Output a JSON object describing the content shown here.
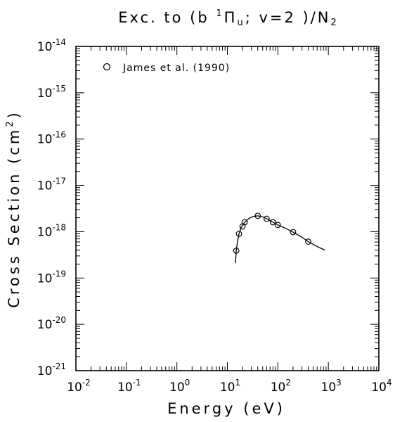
{
  "chart_data": {
    "type": "scatter",
    "title": {
      "prefix": "Exc. to (b ",
      "sup": "1",
      "symbol": "Π",
      "sub": "u",
      "middle": "; v=2 )/N",
      "sub2": "2"
    },
    "xlabel": "Energy (eV)",
    "ylabel": {
      "main": "Cross Section (cm",
      "sup": "2",
      "end": ")"
    },
    "x_scale": "log",
    "y_scale": "log",
    "xlim": [
      0.01,
      10000
    ],
    "ylim": [
      1e-21,
      1e-14
    ],
    "x_ticks": [
      {
        "base": "10",
        "exp": "-2",
        "value": 0.01
      },
      {
        "base": "10",
        "exp": "-1",
        "value": 0.1
      },
      {
        "base": "10",
        "exp": "0",
        "value": 1
      },
      {
        "base": "10",
        "exp": "1",
        "value": 10
      },
      {
        "base": "10",
        "exp": "2",
        "value": 100
      },
      {
        "base": "10",
        "exp": "3",
        "value": 1000
      },
      {
        "base": "10",
        "exp": "4",
        "value": 10000
      }
    ],
    "y_ticks": [
      {
        "base": "10",
        "exp": "-21",
        "value": 1e-21
      },
      {
        "base": "10",
        "exp": "-20",
        "value": 1e-20
      },
      {
        "base": "10",
        "exp": "-19",
        "value": 1e-19
      },
      {
        "base": "10",
        "exp": "-18",
        "value": 1e-18
      },
      {
        "base": "10",
        "exp": "-17",
        "value": 1e-17
      },
      {
        "base": "10",
        "exp": "-16",
        "value": 1e-16
      },
      {
        "base": "10",
        "exp": "-15",
        "value": 1e-15
      },
      {
        "base": "10",
        "exp": "-14",
        "value": 1e-14
      }
    ],
    "grid": false,
    "legend": {
      "position": "top-left",
      "entries": [
        "James et al. (1990)"
      ]
    },
    "series": [
      {
        "name": "James et al. (1990)",
        "marker": "open-circle",
        "points": [
          {
            "x": 15,
            "y": 3.9e-19
          },
          {
            "x": 17,
            "y": 9e-19
          },
          {
            "x": 20,
            "y": 1.3e-18
          },
          {
            "x": 22,
            "y": 1.6e-18
          },
          {
            "x": 40,
            "y": 2.2e-18
          },
          {
            "x": 60,
            "y": 1.9e-18
          },
          {
            "x": 80,
            "y": 1.6e-18
          },
          {
            "x": 100,
            "y": 1.4e-18
          },
          {
            "x": 200,
            "y": 9.8e-19
          },
          {
            "x": 400,
            "y": 6.1e-19
          }
        ]
      },
      {
        "marker": "none",
        "line": true,
        "points": [
          {
            "x": 14.5,
            "y": 2.1e-19
          },
          {
            "x": 15,
            "y": 3.9e-19
          },
          {
            "x": 16,
            "y": 6.5e-19
          },
          {
            "x": 17,
            "y": 9e-19
          },
          {
            "x": 19,
            "y": 1.25e-18
          },
          {
            "x": 22,
            "y": 1.6e-18
          },
          {
            "x": 27,
            "y": 1.95e-18
          },
          {
            "x": 33,
            "y": 2.15e-18
          },
          {
            "x": 40,
            "y": 2.2e-18
          },
          {
            "x": 50,
            "y": 2.1e-18
          },
          {
            "x": 60,
            "y": 1.9e-18
          },
          {
            "x": 80,
            "y": 1.6e-18
          },
          {
            "x": 100,
            "y": 1.4e-18
          },
          {
            "x": 150,
            "y": 1.15e-18
          },
          {
            "x": 200,
            "y": 9.8e-19
          },
          {
            "x": 300,
            "y": 7.6e-19
          },
          {
            "x": 400,
            "y": 6.1e-19
          },
          {
            "x": 600,
            "y": 4.8e-19
          },
          {
            "x": 850,
            "y": 4e-19
          }
        ]
      }
    ]
  }
}
